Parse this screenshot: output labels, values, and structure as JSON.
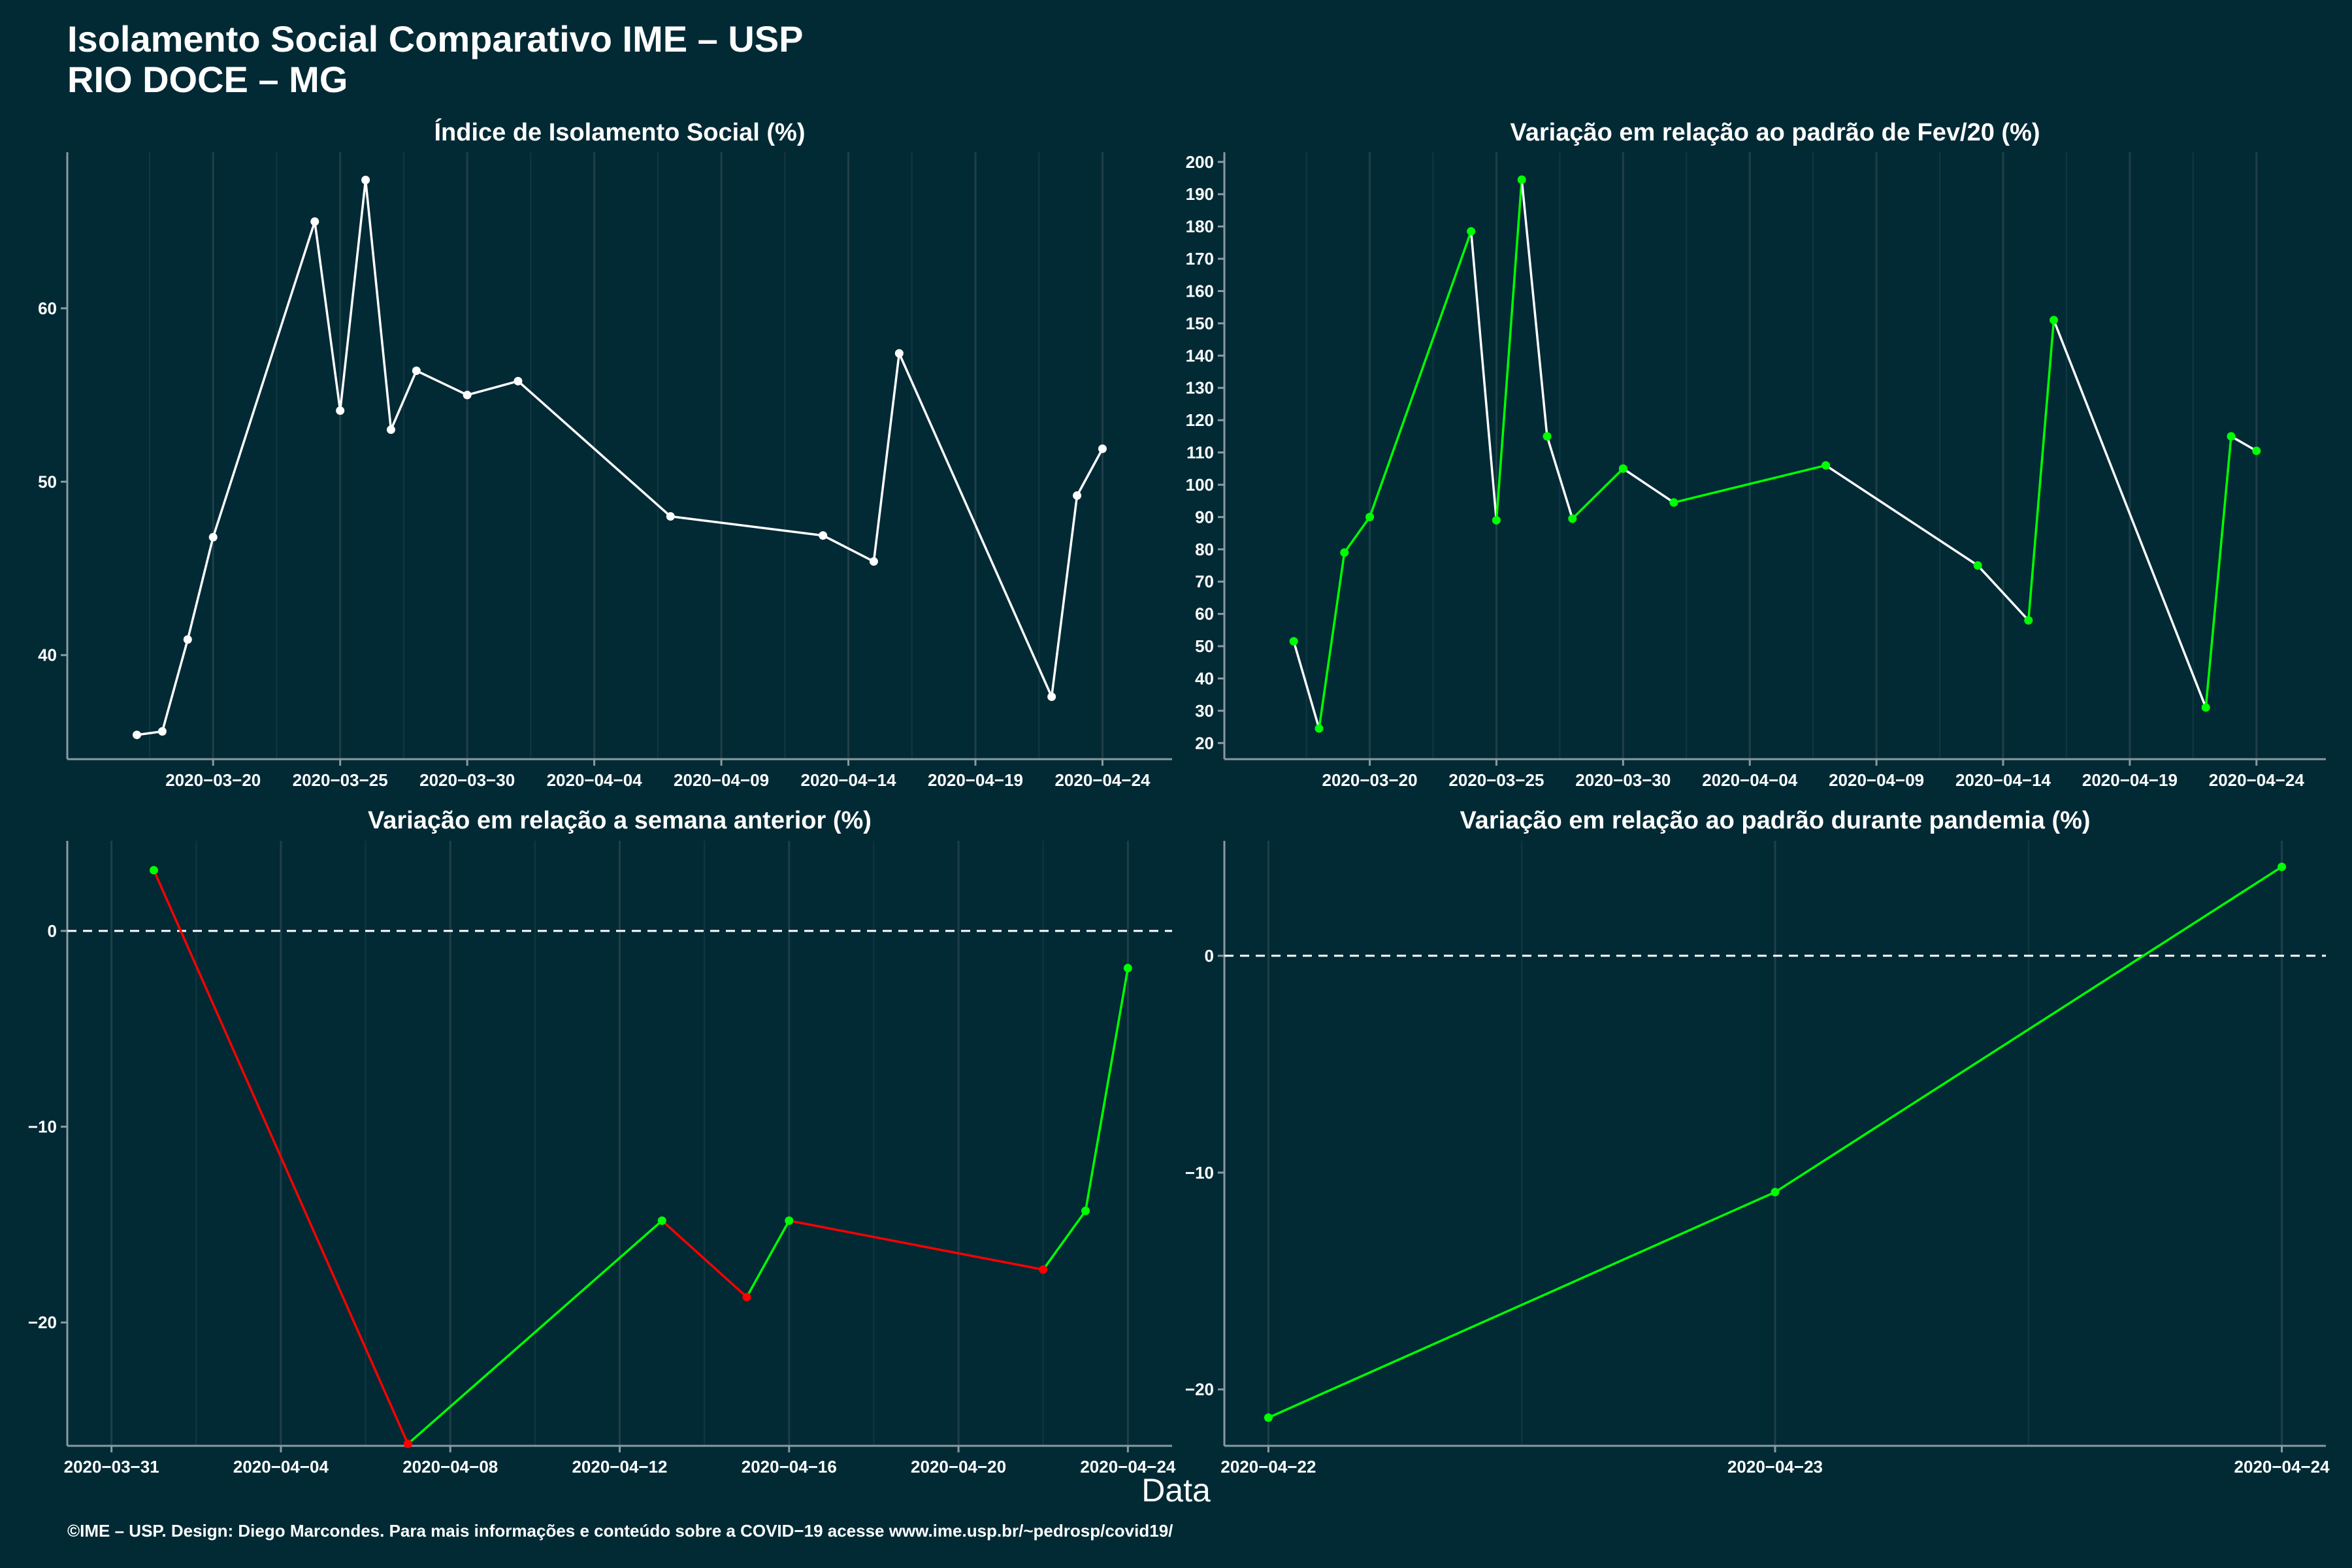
{
  "header": {
    "title_line1": "Isolamento Social Comparativo IME – USP",
    "title_line2": "RIO DOCE – MG"
  },
  "xlabel": "Data",
  "footer": "©IME – USP. Design: Diego Marcondes. Para mais informações e conteúdo sobre a COVID−19 acesse www.ime.usp.br/~pedrosp/covid19/",
  "colors": {
    "background": "#022a35",
    "line": "#ffffff",
    "up": "#00ff00",
    "down": "#ff0000"
  },
  "chart_data": [
    {
      "type": "line",
      "title": "Índice de Isolamento Social (%)",
      "xlim": [
        "2020-03-16",
        "2020-04-25"
      ],
      "ylim": [
        34,
        69
      ],
      "x_ticks": [
        "2020-03-20",
        "2020-03-25",
        "2020-03-30",
        "2020-04-04",
        "2020-04-09",
        "2020-04-14",
        "2020-04-19",
        "2020-04-24"
      ],
      "y_ticks": [
        40,
        50,
        60
      ],
      "color_mode": "none",
      "points": [
        {
          "x": "2020-03-17",
          "y": 35.4
        },
        {
          "x": "2020-03-18",
          "y": 35.6
        },
        {
          "x": "2020-03-19",
          "y": 40.9
        },
        {
          "x": "2020-03-20",
          "y": 46.8
        },
        {
          "x": "2020-03-24",
          "y": 65.0
        },
        {
          "x": "2020-03-25",
          "y": 54.1
        },
        {
          "x": "2020-03-26",
          "y": 67.4
        },
        {
          "x": "2020-03-27",
          "y": 53.0
        },
        {
          "x": "2020-03-28",
          "y": 56.4
        },
        {
          "x": "2020-03-30",
          "y": 55.0
        },
        {
          "x": "2020-04-01",
          "y": 55.8
        },
        {
          "x": "2020-04-07",
          "y": 48.0
        },
        {
          "x": "2020-04-13",
          "y": 46.9
        },
        {
          "x": "2020-04-15",
          "y": 45.4
        },
        {
          "x": "2020-04-16",
          "y": 57.4
        },
        {
          "x": "2020-04-22",
          "y": 37.6
        },
        {
          "x": "2020-04-23",
          "y": 49.2
        },
        {
          "x": "2020-04-24",
          "y": 51.9
        }
      ]
    },
    {
      "type": "line",
      "title": "Variação em relação ao padrão de Fev/20 (%)",
      "xlim": [
        "2020-03-16",
        "2020-04-25"
      ],
      "ylim": [
        15,
        203
      ],
      "x_ticks": [
        "2020-03-20",
        "2020-03-25",
        "2020-03-30",
        "2020-04-04",
        "2020-04-09",
        "2020-04-14",
        "2020-04-19",
        "2020-04-24"
      ],
      "y_ticks": [
        20,
        30,
        40,
        50,
        60,
        70,
        80,
        90,
        100,
        110,
        120,
        130,
        140,
        150,
        160,
        170,
        180,
        190,
        200
      ],
      "color_mode": "up_only",
      "points": [
        {
          "x": "2020-03-17",
          "y": 51.5
        },
        {
          "x": "2020-03-18",
          "y": 24.5
        },
        {
          "x": "2020-03-19",
          "y": 79.0
        },
        {
          "x": "2020-03-20",
          "y": 90.0
        },
        {
          "x": "2020-03-24",
          "y": 178.5
        },
        {
          "x": "2020-03-25",
          "y": 89.0
        },
        {
          "x": "2020-03-26",
          "y": 194.5
        },
        {
          "x": "2020-03-27",
          "y": 115.0
        },
        {
          "x": "2020-03-28",
          "y": 89.5
        },
        {
          "x": "2020-03-30",
          "y": 105.0
        },
        {
          "x": "2020-04-01",
          "y": 94.5
        },
        {
          "x": "2020-04-07",
          "y": 106.0
        },
        {
          "x": "2020-04-13",
          "y": 75.0
        },
        {
          "x": "2020-04-15",
          "y": 58.0
        },
        {
          "x": "2020-04-16",
          "y": 151.0
        },
        {
          "x": "2020-04-22",
          "y": 31.0
        },
        {
          "x": "2020-04-23",
          "y": 115.0
        },
        {
          "x": "2020-04-24",
          "y": 110.5
        }
      ]
    },
    {
      "type": "line",
      "title": "Variação em relação a semana anterior (%)",
      "xlim": [
        "2020-03-31",
        "2020-04-24"
      ],
      "ylim": [
        -26.3,
        4.6
      ],
      "x_ticks": [
        "2020-03-31",
        "2020-04-04",
        "2020-04-08",
        "2020-04-12",
        "2020-04-16",
        "2020-04-20",
        "2020-04-24"
      ],
      "y_ticks": [
        -20,
        -10,
        0
      ],
      "color_mode": "both",
      "reference_line": 0,
      "points": [
        {
          "x": "2020-04-01",
          "y": 3.1
        },
        {
          "x": "2020-04-07",
          "y": -26.2
        },
        {
          "x": "2020-04-13",
          "y": -14.8
        },
        {
          "x": "2020-04-15",
          "y": -18.7
        },
        {
          "x": "2020-04-16",
          "y": -14.8
        },
        {
          "x": "2020-04-22",
          "y": -17.3
        },
        {
          "x": "2020-04-23",
          "y": -14.3
        },
        {
          "x": "2020-04-24",
          "y": -1.9
        }
      ]
    },
    {
      "type": "line",
      "title": "Variação em relação ao padrão durante pandemia (%)",
      "xlim": [
        "2020-04-22",
        "2020-04-24"
      ],
      "ylim": [
        -22.6,
        5.3
      ],
      "x_ticks": [
        "2020-04-22",
        "2020-04-23",
        "2020-04-24"
      ],
      "y_ticks": [
        -20,
        -10,
        0
      ],
      "color_mode": "both",
      "reference_line": 0,
      "points": [
        {
          "x": "2020-04-22",
          "y": -21.3
        },
        {
          "x": "2020-04-23",
          "y": -10.9
        },
        {
          "x": "2020-04-24",
          "y": 4.1
        }
      ]
    }
  ]
}
